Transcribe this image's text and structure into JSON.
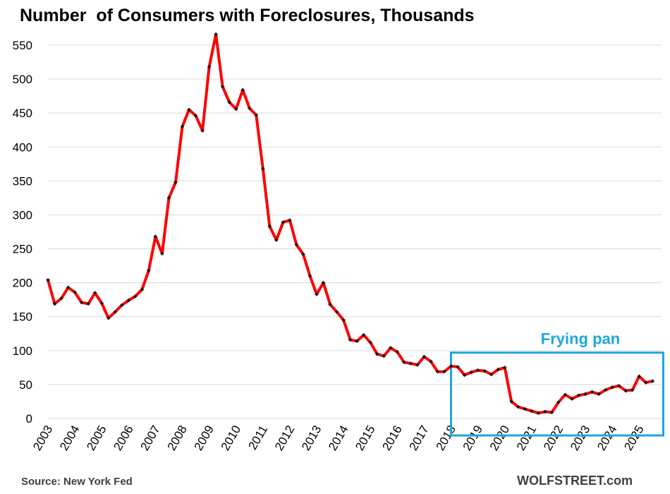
{
  "chart_data": {
    "type": "line",
    "title": "Number  of Consumers with Foreclosures, Thousands",
    "source": "Source: New York Fed",
    "brand": "WOLFSTREET.com",
    "ylim": [
      0,
      565
    ],
    "yticks": [
      0,
      50,
      100,
      150,
      200,
      250,
      300,
      350,
      400,
      450,
      500,
      550
    ],
    "xticks": [
      "2003",
      "2004",
      "2005",
      "2006",
      "2007",
      "2008",
      "2009",
      "2010",
      "2011",
      "2012",
      "2013",
      "2014",
      "2015",
      "2016",
      "2017",
      "2018",
      "2019",
      "2020",
      "2021",
      "2022",
      "2023",
      "2024",
      "2025"
    ],
    "grid": "horizontal",
    "x_start_year": 2003,
    "points_per_year": 4,
    "series": [
      {
        "color": "#ff0000",
        "marker_color": "#1a1a1a",
        "values": [
          204,
          169,
          177,
          193,
          186,
          171,
          169,
          185,
          170,
          148,
          157,
          167,
          174,
          180,
          190,
          218,
          268,
          243,
          325,
          348,
          430,
          455,
          446,
          424,
          518,
          566,
          489,
          466,
          456,
          484,
          457,
          447,
          368,
          283,
          263,
          289,
          292,
          256,
          242,
          210,
          183,
          200,
          168,
          157,
          145,
          116,
          114,
          123,
          112,
          95,
          92,
          104,
          98,
          83,
          81,
          79,
          91,
          84,
          69,
          69,
          77,
          76,
          64,
          68,
          71,
          70,
          65,
          72,
          75,
          25,
          17,
          14,
          11,
          8,
          10,
          9,
          24,
          35,
          29,
          34,
          36,
          39,
          36,
          42,
          46,
          48,
          41,
          42,
          62,
          53,
          55
        ]
      }
    ],
    "annotation": {
      "label": "Frying pan",
      "color": "#1ca7e0",
      "x_range": [
        2018.0,
        2025.9
      ],
      "y_range": [
        -25,
        97
      ]
    }
  }
}
